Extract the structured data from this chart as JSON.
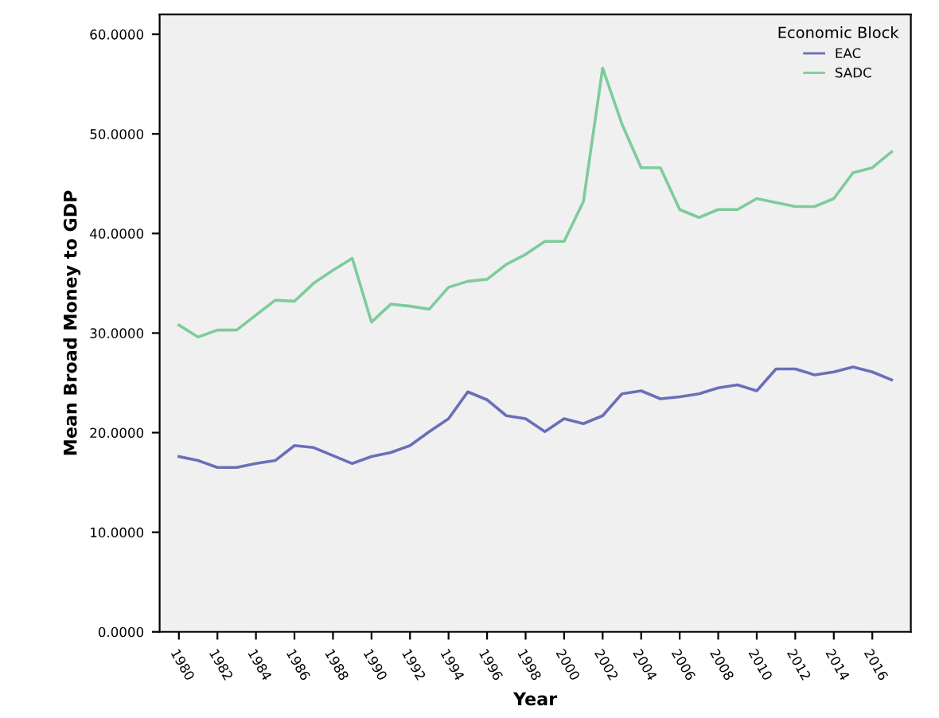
{
  "chart_data": {
    "type": "line",
    "xlabel": "Year",
    "ylabel": "Mean Broad Money to GDP",
    "legend_title": "Economic Block",
    "legend": "top right",
    "grid": false,
    "x": [
      1980,
      1981,
      1982,
      1983,
      1984,
      1985,
      1986,
      1987,
      1988,
      1989,
      1990,
      1991,
      1992,
      1993,
      1994,
      1995,
      1996,
      1997,
      1998,
      1999,
      2000,
      2001,
      2002,
      2003,
      2004,
      2005,
      2006,
      2007,
      2008,
      2009,
      2010,
      2011,
      2012,
      2013,
      2014,
      2015,
      2016,
      2017
    ],
    "xlim": [
      1979,
      2018
    ],
    "xticks": [
      1980,
      1982,
      1984,
      1986,
      1988,
      1990,
      1992,
      1994,
      1996,
      1998,
      2000,
      2002,
      2004,
      2006,
      2008,
      2010,
      2012,
      2014,
      2016
    ],
    "ylim": [
      0,
      62
    ],
    "yticks": [
      {
        "value": 0,
        "label": "0.0000"
      },
      {
        "value": 10,
        "label": "10.0000"
      },
      {
        "value": 20,
        "label": "20.0000"
      },
      {
        "value": 30,
        "label": "30.0000"
      },
      {
        "value": 40,
        "label": "40.0000"
      },
      {
        "value": 50,
        "label": "50.0000"
      },
      {
        "value": 60,
        "label": "60.0000"
      }
    ],
    "series": [
      {
        "name": "EAC",
        "color": "#6a6fb8",
        "values": [
          17.6,
          17.2,
          16.5,
          16.5,
          16.9,
          17.2,
          18.7,
          18.5,
          17.7,
          16.9,
          17.6,
          18.0,
          18.7,
          20.1,
          21.4,
          24.1,
          23.3,
          21.7,
          21.4,
          20.1,
          21.4,
          20.9,
          21.7,
          23.9,
          24.2,
          23.4,
          23.6,
          23.9,
          24.5,
          24.8,
          24.2,
          26.4,
          26.4,
          25.8,
          26.1,
          26.6,
          26.1,
          25.3
        ]
      },
      {
        "name": "SADC",
        "color": "#7dcc9a",
        "values": [
          30.8,
          29.6,
          30.3,
          30.3,
          31.8,
          33.3,
          33.2,
          35.0,
          36.3,
          37.5,
          31.1,
          32.9,
          32.7,
          32.4,
          34.6,
          35.2,
          35.4,
          36.9,
          37.9,
          39.2,
          39.2,
          43.2,
          56.6,
          51.0,
          46.6,
          46.6,
          42.4,
          41.6,
          42.4,
          42.4,
          43.5,
          43.1,
          42.7,
          42.7,
          43.5,
          46.1,
          46.6,
          48.2
        ]
      }
    ]
  }
}
